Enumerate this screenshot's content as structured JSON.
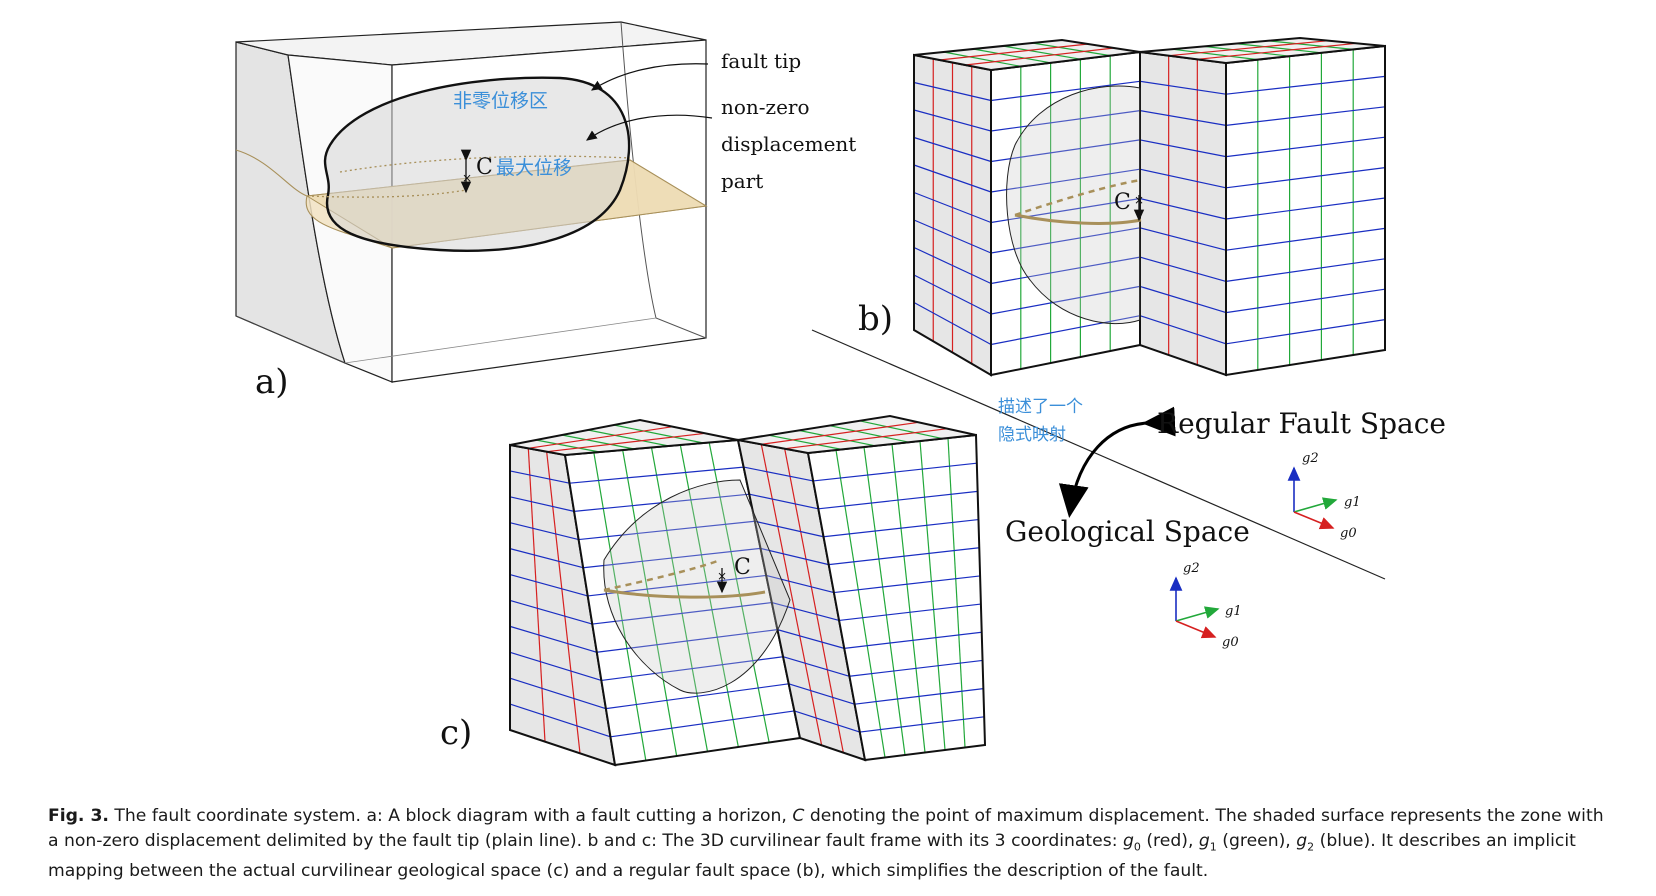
{
  "panel_a": {
    "label": "a)",
    "fault_tip": "fault tip",
    "nonzero_1": "non-zero",
    "nonzero_2": "displacement",
    "nonzero_3": "part",
    "cn_nonzero": "非零位移区",
    "c_label": "C",
    "cn_maxdisp": "最大位移"
  },
  "panel_b": {
    "label": "b)",
    "c_label": "C"
  },
  "panel_c": {
    "label": "c)",
    "c_label": "C"
  },
  "mapping": {
    "cn_1": "描述了一个",
    "cn_2": "隐式映射",
    "regular_space": "Regular Fault Space",
    "geological_space": "Geological Space"
  },
  "axes": {
    "g0": "g0",
    "g1": "g1",
    "g2": "g2"
  },
  "colors": {
    "g0": "#d62020",
    "g1": "#22a83a",
    "g2": "#1a2ec2",
    "annotation": "#3b8fd9",
    "horizon": "#a8905a"
  },
  "caption": {
    "lead": "Fig. 3.",
    "t1": " The fault coordinate system. a: A block diagram with a fault cutting a horizon, ",
    "c": "C",
    "t2": " denoting the point of maximum displacement. The shaded surface represents the zone with a non-zero displacement delimited by the fault tip (plain line). b and c: The 3D curvilinear fault frame with its 3 coordinates: ",
    "g": "g",
    "sub0": "0",
    "red": " (red), ",
    "sub1": "1",
    "green": " (green), ",
    "sub2": "2",
    "t3": " (blue). It describes an implicit mapping between the actual curvilinear geological space (c) and a regular fault space (b), which simplifies the description of the fault."
  }
}
